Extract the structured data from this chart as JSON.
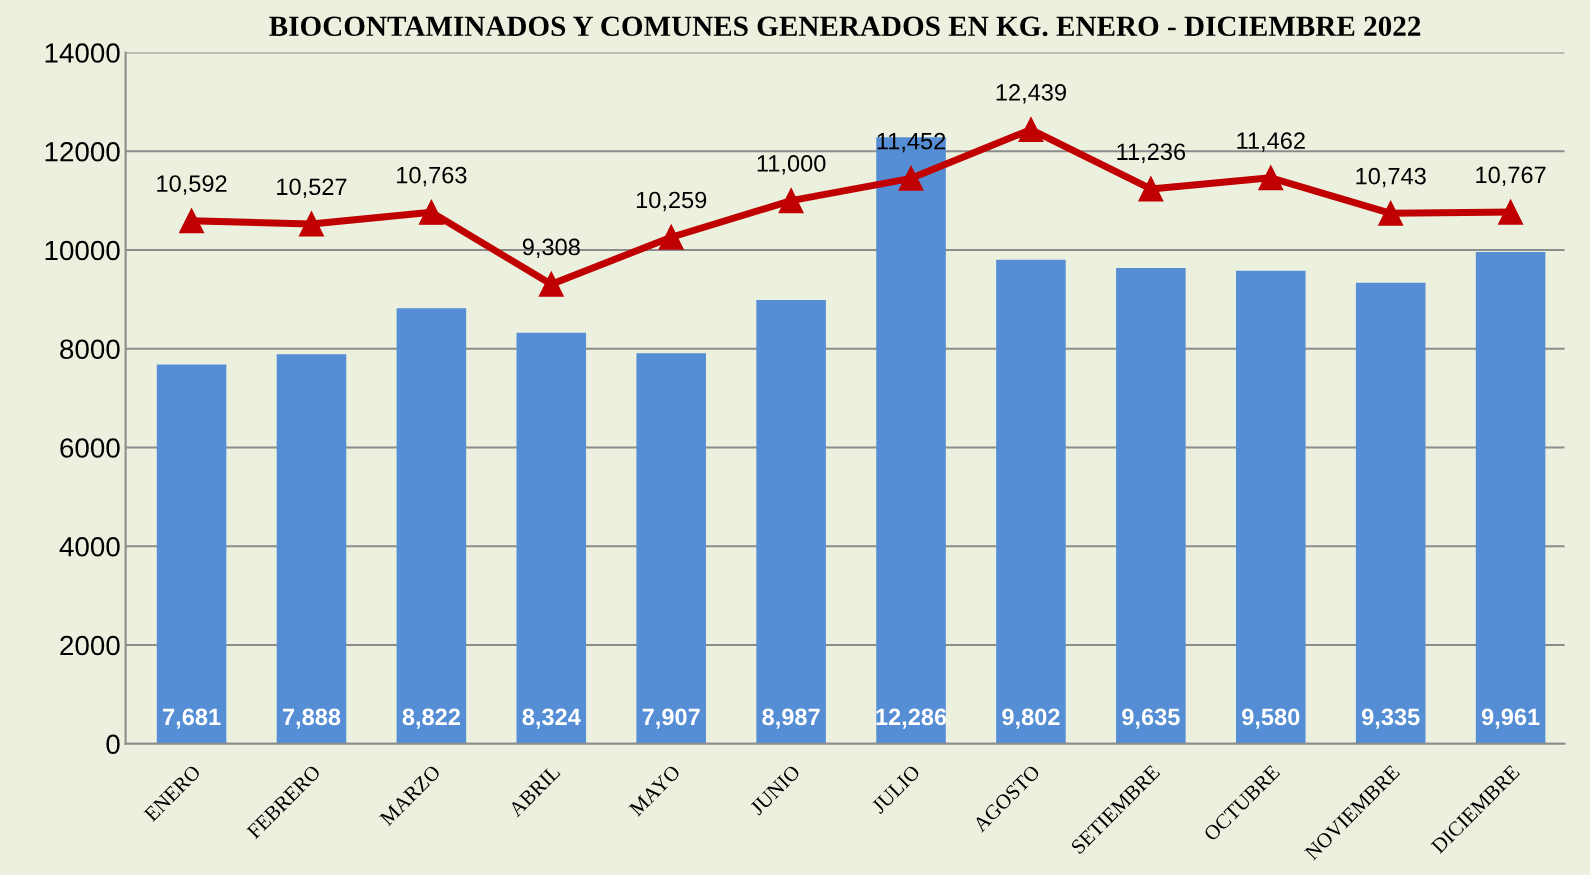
{
  "chart_data": {
    "type": "bar",
    "title": "BIOCONTAMINADOS Y COMUNES GENERADOS EN KG. ENERO - DICIEMBRE 2022",
    "categories": [
      "ENERO",
      "FEBRERO",
      "MARZO",
      "ABRIL",
      "MAYO",
      "JUNIO",
      "JULIO",
      "AGOSTO",
      "SETIEMBRE",
      "OCTUBRE",
      "NOVIEMBRE",
      "DICIEMBRE"
    ],
    "series": [
      {
        "color": "#558ed5",
        "values": [
          7681,
          7888,
          8822,
          8324,
          7907,
          8987,
          12286,
          9802,
          9635,
          9580,
          9335,
          9961
        ],
        "value_labels": [
          "7,681",
          "7,888",
          "8,822",
          "8,324",
          "7,907",
          "8,987",
          "12,286",
          "9,802",
          "9,635",
          "9,580",
          "9,335",
          "9,961"
        ]
      },
      {
        "type": "line",
        "color": "#c00000",
        "values": [
          10592,
          10527,
          10763,
          9308,
          10259,
          11000,
          11452,
          12439,
          11236,
          11462,
          10743,
          10767
        ],
        "value_labels": [
          "10,592",
          "10,527",
          "10,763",
          "9,308",
          "10,259",
          "11,000",
          "11,452",
          "12,439",
          "11,236",
          "11,462",
          "10,743",
          "10,767"
        ]
      }
    ],
    "marker": "triangle",
    "line_style": "solid",
    "grid": "y",
    "ylim": [
      0,
      14000
    ],
    "yticks": [
      0,
      2000,
      4000,
      6000,
      8000,
      10000,
      12000,
      14000
    ]
  }
}
